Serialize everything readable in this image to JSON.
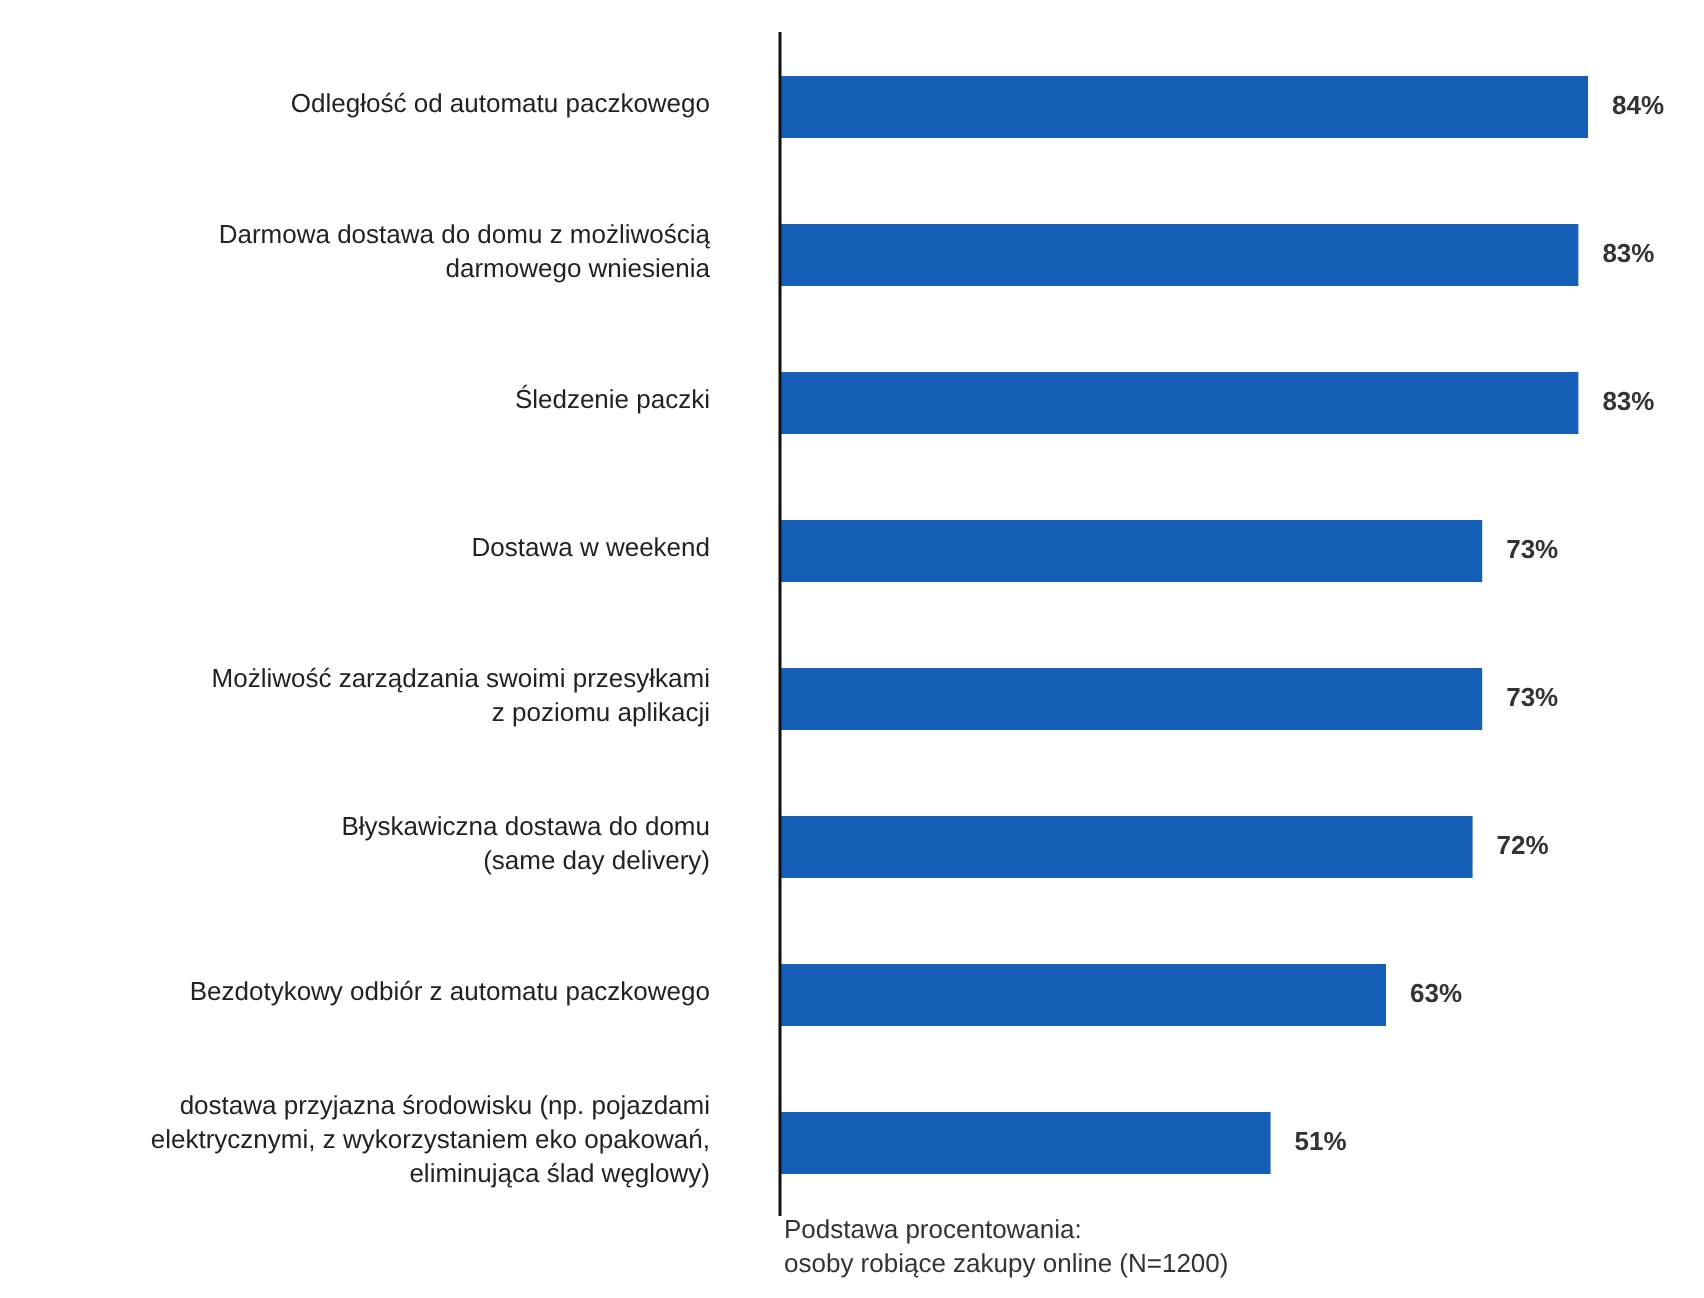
{
  "chart_data": {
    "type": "bar",
    "orientation": "horizontal",
    "categories": [
      "Odległość od automatu paczkowego",
      "Darmowa dostawa do domu z możliwością\ndarmowego wniesienia",
      "Śledzenie paczki",
      "Dostawa w weekend",
      "Możliwość zarządzania swoimi przesyłkami\nz poziomu aplikacji",
      "Błyskawiczna dostawa do domu\n(same day delivery)",
      "Bezdotykowy odbiór z automatu paczkowego",
      "dostawa przyjazna środowisku (np. pojazdami\nelektrycznymi, z wykorzystaniem eko opakowań,\neliminująca ślad węglowy)"
    ],
    "values": [
      84,
      83,
      83,
      73,
      73,
      72,
      63,
      51
    ],
    "color": "#165fb8",
    "value_labels": [
      "84%",
      "83%",
      "83%",
      "73%",
      "73%",
      "72%",
      "63%",
      "51%"
    ],
    "annotations": [
      "Podstawa procentowania:\nosoby robiące zakupy online (N=1200)"
    ],
    "grid": false,
    "legend": false
  }
}
